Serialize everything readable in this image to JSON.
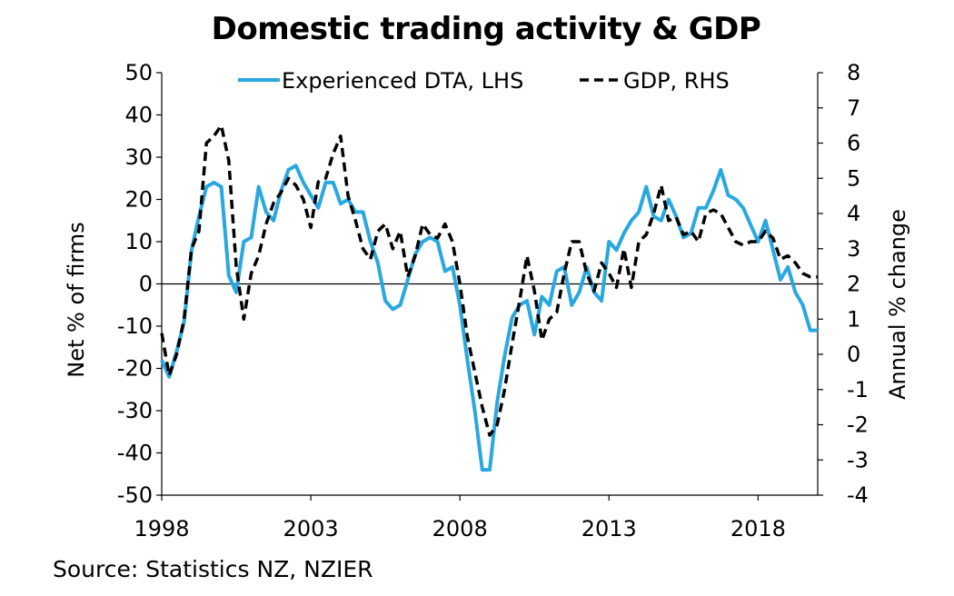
{
  "chart_data": {
    "type": "line",
    "title": "Domestic trading activity & GDP",
    "source": "Source: Statistics NZ, NZIER",
    "ylabel_left": "Net % of firms",
    "ylabel_right": "Annual % change",
    "ylim_left": [
      -50,
      50
    ],
    "ylim_right": [
      -4,
      8
    ],
    "xlim": [
      1998,
      2020
    ],
    "x_ticks": [
      1998,
      2003,
      2008,
      2013,
      2018
    ],
    "y_ticks_left": [
      50,
      40,
      30,
      20,
      10,
      0,
      -10,
      -20,
      -30,
      -40,
      -50
    ],
    "y_ticks_right": [
      8,
      7,
      6,
      5,
      4,
      3,
      2,
      1,
      0,
      -1,
      -2,
      -3,
      -4
    ],
    "legend_position": "top",
    "grid": false,
    "series": [
      {
        "name": "Experienced DTA, LHS",
        "axis": "left",
        "color": "#29a8e0",
        "style": "solid",
        "x": [
          1998.0,
          1998.25,
          1998.5,
          1998.75,
          1999.0,
          1999.25,
          1999.5,
          1999.75,
          2000.0,
          2000.25,
          2000.5,
          2000.75,
          2001.0,
          2001.25,
          2001.5,
          2001.75,
          2002.0,
          2002.25,
          2002.5,
          2002.75,
          2003.0,
          2003.25,
          2003.5,
          2003.75,
          2004.0,
          2004.25,
          2004.5,
          2004.75,
          2005.0,
          2005.25,
          2005.5,
          2005.75,
          2006.0,
          2006.25,
          2006.5,
          2006.75,
          2007.0,
          2007.25,
          2007.5,
          2007.75,
          2008.0,
          2008.25,
          2008.5,
          2008.75,
          2009.0,
          2009.25,
          2009.5,
          2009.75,
          2010.0,
          2010.25,
          2010.5,
          2010.75,
          2011.0,
          2011.25,
          2011.5,
          2011.75,
          2012.0,
          2012.25,
          2012.5,
          2012.75,
          2013.0,
          2013.25,
          2013.5,
          2013.75,
          2014.0,
          2014.25,
          2014.5,
          2014.75,
          2015.0,
          2015.25,
          2015.5,
          2015.75,
          2016.0,
          2016.25,
          2016.5,
          2016.75,
          2017.0,
          2017.25,
          2017.5,
          2017.75,
          2018.0,
          2018.25,
          2018.5,
          2018.75,
          2019.0,
          2019.25,
          2019.5,
          2019.75,
          2020.0
        ],
        "values": [
          -18,
          -22,
          -16,
          -9,
          8,
          16,
          23,
          24,
          23,
          2,
          -2,
          10,
          11,
          23,
          17,
          15,
          22,
          27,
          28,
          24,
          21,
          18,
          24,
          24,
          19,
          20,
          17,
          17,
          10,
          5,
          -4,
          -6,
          -5,
          1,
          7,
          10,
          11,
          10,
          3,
          4,
          -5,
          -18,
          -30,
          -44,
          -44,
          -28,
          -17,
          -8,
          -5,
          -4,
          -12,
          -3,
          -5,
          3,
          4,
          -5,
          -2,
          4,
          -2,
          -4,
          10,
          8,
          12,
          15,
          17,
          23,
          16,
          15,
          20,
          16,
          11,
          12,
          18,
          18,
          22,
          27,
          21,
          20,
          18,
          14,
          10,
          15,
          8,
          1,
          4,
          -2,
          -5,
          -11,
          -11
        ]
      },
      {
        "name": "GDP, RHS",
        "axis": "right",
        "color": "#000000",
        "style": "dashed",
        "x": [
          1998.0,
          1998.25,
          1998.5,
          1998.75,
          1999.0,
          1999.25,
          1999.5,
          1999.75,
          2000.0,
          2000.25,
          2000.5,
          2000.75,
          2001.0,
          2001.25,
          2001.5,
          2001.75,
          2002.0,
          2002.25,
          2002.5,
          2002.75,
          2003.0,
          2003.25,
          2003.5,
          2003.75,
          2004.0,
          2004.25,
          2004.5,
          2004.75,
          2005.0,
          2005.25,
          2005.5,
          2005.75,
          2006.0,
          2006.25,
          2006.5,
          2006.75,
          2007.0,
          2007.25,
          2007.5,
          2007.75,
          2008.0,
          2008.25,
          2008.5,
          2008.75,
          2009.0,
          2009.25,
          2009.5,
          2009.75,
          2010.0,
          2010.25,
          2010.5,
          2010.75,
          2011.0,
          2011.25,
          2011.5,
          2011.75,
          2012.0,
          2012.25,
          2012.5,
          2012.75,
          2013.0,
          2013.25,
          2013.5,
          2013.75,
          2014.0,
          2014.25,
          2014.5,
          2014.75,
          2015.0,
          2015.25,
          2015.5,
          2015.75,
          2016.0,
          2016.25,
          2016.5,
          2016.75,
          2017.0,
          2017.25,
          2017.5,
          2017.75,
          2018.0,
          2018.25,
          2018.5,
          2018.75,
          2019.0,
          2019.25,
          2019.5,
          2019.75,
          2020.0
        ],
        "values": [
          0.6,
          -0.6,
          0,
          1,
          3,
          3.5,
          6,
          6.2,
          6.5,
          5.5,
          2.5,
          1,
          2.3,
          2.8,
          3.7,
          4.3,
          4.6,
          5,
          4.8,
          4.4,
          3.6,
          4.9,
          5,
          5.7,
          6.2,
          4.5,
          3.8,
          3,
          2.7,
          3.5,
          3.7,
          3,
          3.5,
          2.2,
          2.8,
          3.7,
          3.4,
          3.3,
          3.7,
          3.2,
          2,
          0.5,
          -0.5,
          -1.5,
          -2.3,
          -2,
          -1,
          0.3,
          1.5,
          2.8,
          1.8,
          0.4,
          1,
          1.2,
          2.3,
          3.2,
          3.2,
          2.3,
          1.8,
          2.6,
          2.3,
          1.9,
          3,
          1.9,
          3.2,
          3.4,
          4,
          4.8,
          3.8,
          3.9,
          3.4,
          3.5,
          3.2,
          4,
          4.1,
          4,
          3.6,
          3.2,
          3.1,
          3.2,
          3.2,
          3.5,
          3.3,
          2.7,
          2.8,
          2.6,
          2.3,
          2.2,
          2.2
        ]
      }
    ]
  }
}
